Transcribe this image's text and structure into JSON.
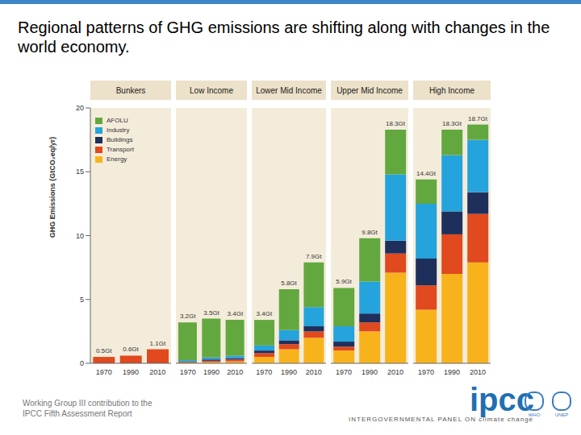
{
  "title": "Regional patterns of GHG emissions are shifting along with changes in the world economy.",
  "footer": "Working Group III contribution to the IPCC Fifth Assessment Report",
  "logo": {
    "name": "ipcc",
    "text": "INTERGOVERNMENTAL PANEL ON climate change",
    "partners": [
      "WHO",
      "UNEP"
    ]
  },
  "chart_data": [
    {
      "type": "bar",
      "title": "Bunkers",
      "y_label": "GHG Emissions (GtCO₂eq/yr)",
      "categories": [
        "1970",
        "1990",
        "2010"
      ],
      "stacked": true,
      "grid": false,
      "legend": "upper left",
      "ylim": [
        0,
        20
      ],
      "yticks": [
        0,
        5,
        10,
        15,
        20
      ],
      "series": [
        {
          "name": "Energy",
          "color": "#f8b31c",
          "values": [
            0,
            0,
            0
          ]
        },
        {
          "name": "Transport",
          "color": "#e1491f",
          "values": [
            0.5,
            0.6,
            1.1
          ]
        },
        {
          "name": "Buildings",
          "color": "#1f2f5c",
          "values": [
            0,
            0,
            0
          ]
        },
        {
          "name": "Industry",
          "color": "#25a3dc",
          "values": [
            0,
            0,
            0
          ]
        },
        {
          "name": "AFOLU",
          "color": "#62a83f",
          "values": [
            0,
            0,
            0
          ]
        }
      ],
      "totals": [
        0.5,
        0.6,
        1.1
      ],
      "total_labels": [
        "0.5Gt",
        "0.6Gt",
        "1.1Gt"
      ]
    },
    {
      "type": "bar",
      "title": "Low Income",
      "categories": [
        "1970",
        "1990",
        "2010"
      ],
      "stacked": true,
      "grid": false,
      "tick_labels": "x",
      "ylim": [
        0,
        20
      ],
      "yticks": [
        0,
        5,
        10,
        15,
        20
      ],
      "series": [
        {
          "name": "Energy",
          "color": "#f8b31c",
          "values": [
            0.05,
            0.1,
            0.15
          ]
        },
        {
          "name": "Transport",
          "color": "#e1491f",
          "values": [
            0.05,
            0.1,
            0.15
          ]
        },
        {
          "name": "Buildings",
          "color": "#1f2f5c",
          "values": [
            0.05,
            0.1,
            0.1
          ]
        },
        {
          "name": "Industry",
          "color": "#25a3dc",
          "values": [
            0.1,
            0.15,
            0.2
          ]
        },
        {
          "name": "AFOLU",
          "color": "#62a83f",
          "values": [
            2.95,
            3.05,
            2.8
          ]
        }
      ],
      "totals": [
        3.2,
        3.5,
        3.4
      ],
      "total_labels": [
        "3.2Gt",
        "3.5Gt",
        "3.4Gt"
      ]
    },
    {
      "type": "bar",
      "title": "Lower Mid Income",
      "categories": [
        "1970",
        "1990",
        "2010"
      ],
      "stacked": true,
      "grid": false,
      "tick_labels": "x",
      "ylim": [
        0,
        20
      ],
      "yticks": [
        0,
        5,
        10,
        15,
        20
      ],
      "series": [
        {
          "name": "Energy",
          "color": "#f8b31c",
          "values": [
            0.5,
            1.1,
            2.0
          ]
        },
        {
          "name": "Transport",
          "color": "#e1491f",
          "values": [
            0.3,
            0.4,
            0.5
          ]
        },
        {
          "name": "Buildings",
          "color": "#1f2f5c",
          "values": [
            0.2,
            0.3,
            0.4
          ]
        },
        {
          "name": "Industry",
          "color": "#25a3dc",
          "values": [
            0.4,
            0.8,
            1.5
          ]
        },
        {
          "name": "AFOLU",
          "color": "#62a83f",
          "values": [
            2.0,
            3.2,
            3.5
          ]
        }
      ],
      "totals": [
        3.4,
        5.8,
        7.9
      ],
      "total_labels": [
        "3.4Gt",
        "5.8Gt",
        "7.9Gt"
      ]
    },
    {
      "type": "bar",
      "title": "Upper Mid Income",
      "categories": [
        "1970",
        "1990",
        "2010"
      ],
      "stacked": true,
      "grid": false,
      "tick_labels": "x",
      "ylim": [
        0,
        20
      ],
      "yticks": [
        0,
        5,
        10,
        15,
        20
      ],
      "series": [
        {
          "name": "Energy",
          "color": "#f8b31c",
          "values": [
            1.0,
            2.5,
            7.1
          ]
        },
        {
          "name": "Transport",
          "color": "#e1491f",
          "values": [
            0.3,
            0.7,
            1.5
          ]
        },
        {
          "name": "Buildings",
          "color": "#1f2f5c",
          "values": [
            0.4,
            0.7,
            1.0
          ]
        },
        {
          "name": "Industry",
          "color": "#25a3dc",
          "values": [
            1.2,
            2.5,
            5.2
          ]
        },
        {
          "name": "AFOLU",
          "color": "#62a83f",
          "values": [
            3.0,
            3.4,
            3.5
          ]
        }
      ],
      "totals": [
        5.9,
        9.8,
        18.3
      ],
      "total_labels": [
        "5.9Gt",
        "9.8Gt",
        "18.3Gt"
      ]
    },
    {
      "type": "bar",
      "title": "High Income",
      "categories": [
        "1970",
        "1990",
        "2010"
      ],
      "stacked": true,
      "grid": false,
      "tick_labels": "x",
      "ylim": [
        0,
        20
      ],
      "yticks": [
        0,
        5,
        10,
        15,
        20
      ],
      "series": [
        {
          "name": "Energy",
          "color": "#f8b31c",
          "values": [
            4.2,
            7.0,
            7.9
          ]
        },
        {
          "name": "Transport",
          "color": "#e1491f",
          "values": [
            1.9,
            3.1,
            3.8
          ]
        },
        {
          "name": "Buildings",
          "color": "#1f2f5c",
          "values": [
            2.1,
            1.8,
            1.7
          ]
        },
        {
          "name": "Industry",
          "color": "#25a3dc",
          "values": [
            4.3,
            4.4,
            4.1
          ]
        },
        {
          "name": "AFOLU",
          "color": "#62a83f",
          "values": [
            1.9,
            2.0,
            1.2
          ]
        }
      ],
      "totals": [
        14.4,
        18.3,
        18.7
      ],
      "total_labels": [
        "14.4Gt",
        "18.3Gt",
        "18.7Gt"
      ]
    }
  ]
}
